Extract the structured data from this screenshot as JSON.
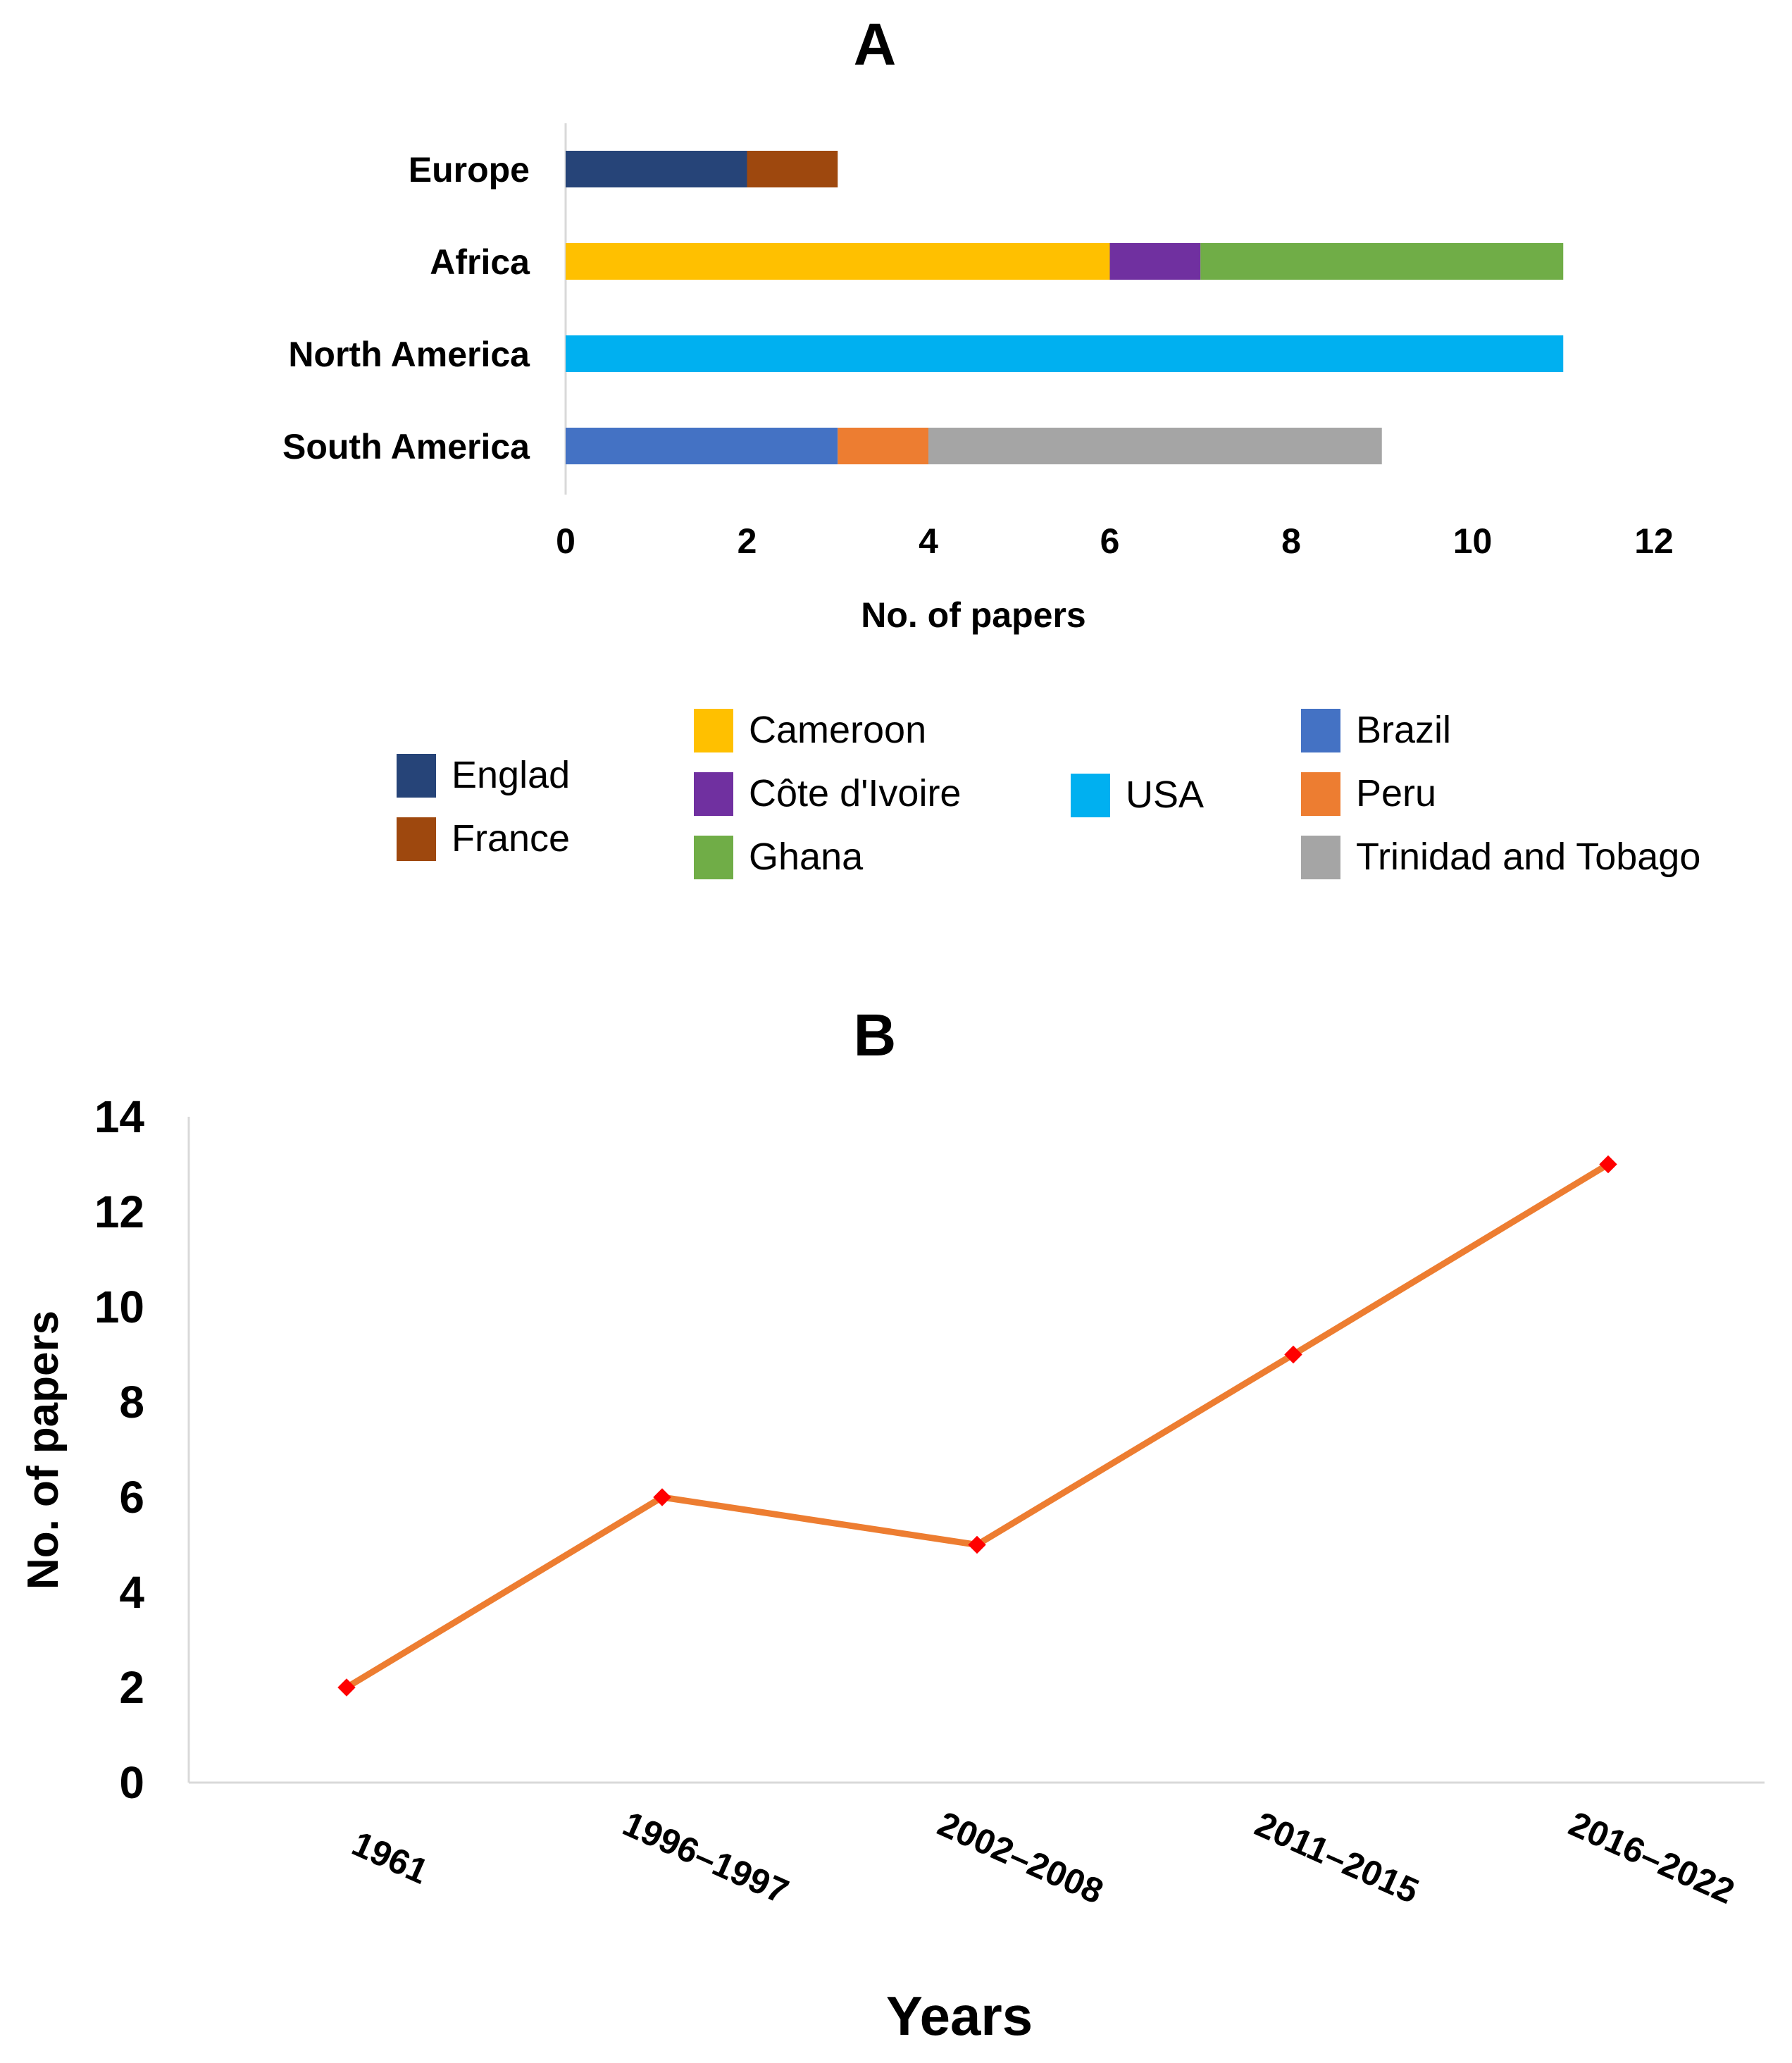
{
  "chart_data": [
    {
      "type": "bar",
      "orientation": "horizontal",
      "stacked": true,
      "panel_label": "A",
      "categories": [
        "Europe",
        "Africa",
        "North America",
        "South America"
      ],
      "series": [
        {
          "name": "Englad",
          "color": "#264478",
          "values": [
            2,
            0,
            0,
            0
          ]
        },
        {
          "name": "France",
          "color": "#9E480E",
          "values": [
            1,
            0,
            0,
            0
          ]
        },
        {
          "name": "Cameroon",
          "color": "#FFC000",
          "values": [
            0,
            6,
            0,
            0
          ]
        },
        {
          "name": "Côte d'Ivoire",
          "color": "#7030A0",
          "values": [
            0,
            1,
            0,
            0
          ]
        },
        {
          "name": "Ghana",
          "color": "#70AD47",
          "values": [
            0,
            4,
            0,
            0
          ]
        },
        {
          "name": "USA",
          "color": "#00B0F0",
          "values": [
            0,
            0,
            11,
            0
          ]
        },
        {
          "name": "Brazil",
          "color": "#4472C4",
          "values": [
            0,
            0,
            0,
            3
          ]
        },
        {
          "name": "Peru",
          "color": "#ED7D31",
          "values": [
            0,
            0,
            0,
            1
          ]
        },
        {
          "name": "Trinidad and Tobago",
          "color": "#A5A5A5",
          "values": [
            0,
            0,
            0,
            5
          ]
        }
      ],
      "xlabel": "No. of papers",
      "ylabel": "",
      "xlim": [
        0,
        12
      ],
      "xticks": [
        "0",
        "2",
        "4",
        "6",
        "8",
        "10",
        "12"
      ],
      "grid": false,
      "legend": "bottom"
    },
    {
      "type": "line",
      "panel_label": "B",
      "categories": [
        "1961",
        "1996–1997",
        "2002–2008",
        "2011–2015",
        "2016–2022"
      ],
      "series": [
        {
          "name": "No. of papers",
          "line_color": "#ED7D31",
          "marker_color": "#FF0000",
          "values": [
            2,
            6,
            5,
            9,
            13
          ]
        }
      ],
      "xlabel": "Years",
      "ylabel": "No. of papers",
      "ylim": [
        0,
        14
      ],
      "yticks": [
        "0",
        "2",
        "4",
        "6",
        "8",
        "10",
        "12",
        "14"
      ],
      "grid": false,
      "legend": "none"
    }
  ]
}
